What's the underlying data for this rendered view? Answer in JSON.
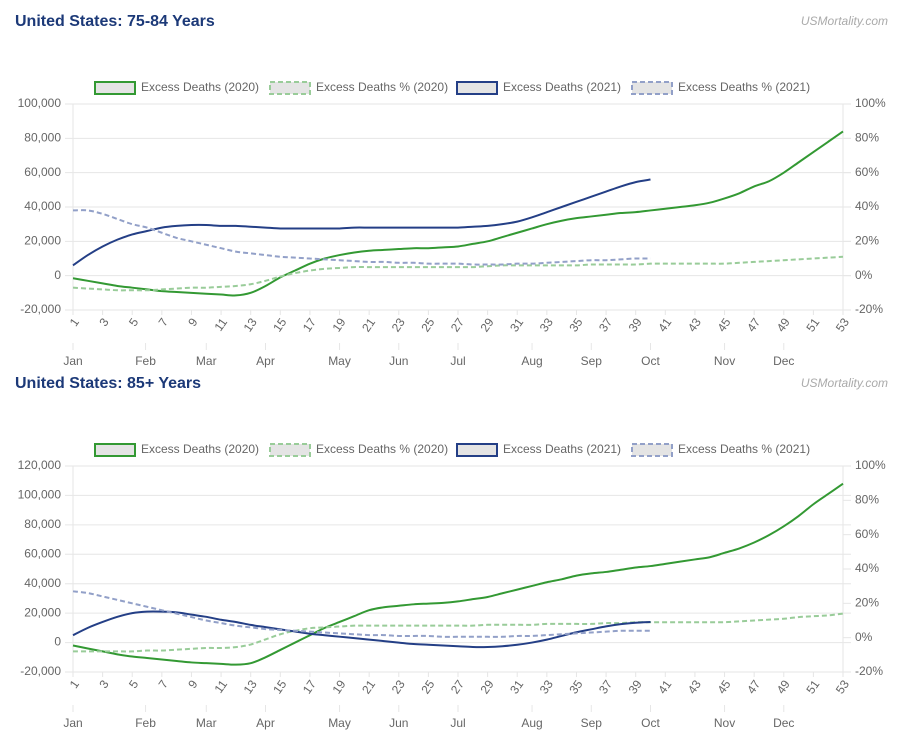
{
  "chart_data": [
    {
      "type": "line",
      "title": "United States: 75-84 Years",
      "source": "USMortality.com",
      "x": [
        1,
        2,
        3,
        4,
        5,
        6,
        7,
        8,
        9,
        10,
        11,
        12,
        13,
        14,
        15,
        16,
        17,
        18,
        19,
        20,
        21,
        22,
        23,
        24,
        25,
        26,
        27,
        28,
        29,
        30,
        31,
        32,
        33,
        34,
        35,
        36,
        37,
        38,
        39,
        40,
        41,
        42,
        43,
        44,
        45,
        46,
        47,
        48,
        49,
        50,
        51,
        52,
        53
      ],
      "xlim": [
        1,
        53
      ],
      "xticks": [
        1,
        3,
        5,
        7,
        9,
        11,
        13,
        15,
        17,
        19,
        21,
        23,
        25,
        27,
        29,
        31,
        33,
        35,
        37,
        39,
        41,
        43,
        45,
        47,
        49,
        51,
        53
      ],
      "x2ticks": [
        {
          "value": 1,
          "label": "Jan"
        },
        {
          "value": 5.9,
          "label": "Feb"
        },
        {
          "value": 10,
          "label": "Mar"
        },
        {
          "value": 14,
          "label": "Apr"
        },
        {
          "value": 19,
          "label": "May"
        },
        {
          "value": 23,
          "label": "Jun"
        },
        {
          "value": 27,
          "label": "Jul"
        },
        {
          "value": 32,
          "label": "Aug"
        },
        {
          "value": 36,
          "label": "Sep"
        },
        {
          "value": 40,
          "label": "Oct"
        },
        {
          "value": 45,
          "label": "Nov"
        },
        {
          "value": 49,
          "label": "Dec"
        }
      ],
      "ylim": [
        -20000,
        100000
      ],
      "yticks": [
        {
          "value": -20000,
          "label": "-20,000"
        },
        0,
        {
          "value": 20000,
          "label": "20,000"
        },
        {
          "value": 40000,
          "label": "40,000"
        },
        {
          "value": 60000,
          "label": "60,000"
        },
        {
          "value": 80000,
          "label": "80,000"
        },
        {
          "value": 100000,
          "label": "100,000"
        }
      ],
      "y2lim": [
        -20,
        100
      ],
      "y2ticks": [
        {
          "value": -20,
          "label": "-20%"
        },
        {
          "value": 0,
          "label": "0%"
        },
        {
          "value": 20,
          "label": "20%"
        },
        {
          "value": 40,
          "label": "40%"
        },
        {
          "value": 60,
          "label": "60%"
        },
        {
          "value": 80,
          "label": "80%"
        },
        {
          "value": 100,
          "label": "100%"
        }
      ],
      "grid": true,
      "legend": "top",
      "series": [
        {
          "name": "Excess Deaths (2020)",
          "color": "#339933",
          "values": [
            -1500,
            -3000,
            -4500,
            -6000,
            -7000,
            -8000,
            -9000,
            -9500,
            -10000,
            -10500,
            -11000,
            -11500,
            -10000,
            -6000,
            -1000,
            3000,
            7000,
            10000,
            12000,
            13500,
            14500,
            15000,
            15500,
            16000,
            16000,
            16500,
            17000,
            18500,
            20000,
            22500,
            25000,
            27500,
            30000,
            32000,
            33500,
            34500,
            35500,
            36500,
            37000,
            38000,
            39000,
            40000,
            41000,
            42500,
            45000,
            48000,
            52000,
            55000,
            60000,
            66000,
            72000,
            78000,
            84000
          ]
        },
        {
          "name": "Excess Deaths % (2020)",
          "color": "#99cc99",
          "dashed": true,
          "axis": "y2",
          "values": [
            -7,
            -7.5,
            -8,
            -8.5,
            -8.5,
            -8.5,
            -8,
            -7.5,
            -7,
            -7,
            -6.5,
            -6,
            -5,
            -3,
            -0.5,
            1.5,
            3,
            4,
            4.5,
            5,
            5,
            5,
            5,
            5,
            5,
            5,
            5,
            5,
            5.5,
            6,
            6,
            6,
            6,
            6,
            6,
            6.5,
            6.5,
            6.5,
            6.5,
            7,
            7,
            7,
            7,
            7,
            7,
            7.5,
            8,
            8.5,
            9,
            9.5,
            10,
            10.5,
            11
          ]
        },
        {
          "name": "Excess Deaths (2021)",
          "color": "#243f86",
          "values": [
            6000,
            12000,
            17000,
            21000,
            24000,
            26000,
            28000,
            29000,
            29500,
            29500,
            29000,
            29000,
            28500,
            28000,
            27500,
            27500,
            27500,
            27500,
            27500,
            28000,
            28000,
            28000,
            28000,
            28000,
            28000,
            28000,
            28000,
            28500,
            29000,
            30000,
            31500,
            34000,
            37000,
            40000,
            43000,
            46000,
            49000,
            52000,
            54500,
            56000,
            null,
            null,
            null,
            null,
            null,
            null,
            null,
            null,
            null,
            null,
            null,
            null,
            null
          ]
        },
        {
          "name": "Excess Deaths % (2021)",
          "color": "#92a0c8",
          "dashed": true,
          "axis": "y2",
          "values": [
            38,
            38,
            36,
            33,
            30,
            28,
            25,
            22,
            20,
            18,
            16,
            14,
            13,
            12,
            11,
            10.5,
            10,
            9.5,
            9,
            8.5,
            8,
            8,
            7.5,
            7.5,
            7,
            7,
            7,
            6.5,
            6.5,
            6.5,
            7,
            7,
            7.5,
            8,
            8.5,
            9,
            9,
            9.5,
            10,
            10,
            null,
            null,
            null,
            null,
            null,
            null,
            null,
            null,
            null,
            null,
            null,
            null,
            null
          ]
        }
      ]
    },
    {
      "type": "line",
      "title": "United States: 85+ Years",
      "source": "USMortality.com",
      "x": [
        1,
        2,
        3,
        4,
        5,
        6,
        7,
        8,
        9,
        10,
        11,
        12,
        13,
        14,
        15,
        16,
        17,
        18,
        19,
        20,
        21,
        22,
        23,
        24,
        25,
        26,
        27,
        28,
        29,
        30,
        31,
        32,
        33,
        34,
        35,
        36,
        37,
        38,
        39,
        40,
        41,
        42,
        43,
        44,
        45,
        46,
        47,
        48,
        49,
        50,
        51,
        52,
        53
      ],
      "xlim": [
        1,
        53
      ],
      "xticks": [
        1,
        3,
        5,
        7,
        9,
        11,
        13,
        15,
        17,
        19,
        21,
        23,
        25,
        27,
        29,
        31,
        33,
        35,
        37,
        39,
        41,
        43,
        45,
        47,
        49,
        51,
        53
      ],
      "x2ticks": [
        {
          "value": 1,
          "label": "Jan"
        },
        {
          "value": 5.9,
          "label": "Feb"
        },
        {
          "value": 10,
          "label": "Mar"
        },
        {
          "value": 14,
          "label": "Apr"
        },
        {
          "value": 19,
          "label": "May"
        },
        {
          "value": 23,
          "label": "Jun"
        },
        {
          "value": 27,
          "label": "Jul"
        },
        {
          "value": 32,
          "label": "Aug"
        },
        {
          "value": 36,
          "label": "Sep"
        },
        {
          "value": 40,
          "label": "Oct"
        },
        {
          "value": 45,
          "label": "Nov"
        },
        {
          "value": 49,
          "label": "Dec"
        }
      ],
      "ylim": [
        -20000,
        120000
      ],
      "yticks": [
        {
          "value": -20000,
          "label": "-20,000"
        },
        0,
        {
          "value": 20000,
          "label": "20,000"
        },
        {
          "value": 40000,
          "label": "40,000"
        },
        {
          "value": 60000,
          "label": "60,000"
        },
        {
          "value": 80000,
          "label": "80,000"
        },
        {
          "value": 100000,
          "label": "100,000"
        },
        {
          "value": 120000,
          "label": "120,000"
        }
      ],
      "y2lim": [
        -20,
        100
      ],
      "y2ticks": [
        {
          "value": -20,
          "label": "-20%"
        },
        {
          "value": 0,
          "label": "0%"
        },
        {
          "value": 20,
          "label": "20%"
        },
        {
          "value": 40,
          "label": "40%"
        },
        {
          "value": 60,
          "label": "60%"
        },
        {
          "value": 80,
          "label": "80%"
        },
        {
          "value": 100,
          "label": "100%"
        }
      ],
      "grid": true,
      "legend": "top",
      "series": [
        {
          "name": "Excess Deaths (2020)",
          "color": "#339933",
          "values": [
            -2000,
            -4000,
            -6000,
            -8000,
            -9500,
            -10500,
            -11500,
            -12500,
            -13500,
            -14000,
            -14500,
            -15000,
            -14000,
            -10000,
            -5000,
            0,
            5000,
            10000,
            14000,
            18000,
            22000,
            24000,
            25000,
            26000,
            26500,
            27000,
            28000,
            29500,
            31000,
            33500,
            36000,
            38500,
            41000,
            43000,
            45500,
            47000,
            48000,
            49500,
            51000,
            52000,
            53500,
            55000,
            56500,
            58000,
            61000,
            64000,
            68000,
            73000,
            79000,
            86000,
            94000,
            101000,
            108000
          ]
        },
        {
          "name": "Excess Deaths % (2020)",
          "color": "#99cc99",
          "dashed": true,
          "axis": "y2",
          "values": [
            -8,
            -8,
            -8,
            -8,
            -8,
            -7.5,
            -7.5,
            -7,
            -6.5,
            -6,
            -6,
            -5.5,
            -4,
            -1,
            2,
            4,
            5.5,
            6,
            6.5,
            7,
            7,
            7,
            7,
            7,
            7,
            7,
            7,
            7,
            7.5,
            7.5,
            7.5,
            7.5,
            8,
            8,
            8,
            8,
            8.5,
            8.5,
            9,
            9,
            9,
            9,
            9,
            9,
            9,
            9.5,
            10,
            10.5,
            11,
            12,
            12.5,
            13,
            14
          ]
        },
        {
          "name": "Excess Deaths (2021)",
          "color": "#243f86",
          "values": [
            5000,
            10000,
            14000,
            17500,
            20000,
            21000,
            21000,
            20500,
            19000,
            17500,
            15500,
            14000,
            12000,
            10500,
            9000,
            7500,
            6000,
            5000,
            4000,
            3000,
            2000,
            1000,
            0,
            -1000,
            -1500,
            -2000,
            -2500,
            -3000,
            -3000,
            -2500,
            -1500,
            0,
            2000,
            4500,
            7000,
            9000,
            11000,
            12500,
            13500,
            14000,
            null,
            null,
            null,
            null,
            null,
            null,
            null,
            null,
            null,
            null,
            null,
            null,
            null
          ]
        },
        {
          "name": "Excess Deaths % (2021)",
          "color": "#92a0c8",
          "dashed": true,
          "axis": "y2",
          "values": [
            27,
            26,
            24,
            22,
            20,
            18,
            16,
            14,
            12,
            10,
            8.5,
            7,
            6,
            5,
            4.5,
            4,
            3.5,
            3,
            2.5,
            2,
            1.5,
            1.5,
            1,
            1,
            1,
            0.5,
            0.5,
            0.5,
            0.5,
            0.5,
            1,
            1,
            1.5,
            2,
            2.5,
            3,
            3.5,
            4,
            4,
            4,
            null,
            null,
            null,
            null,
            null,
            null,
            null,
            null,
            null,
            null,
            null,
            null,
            null
          ]
        }
      ]
    }
  ]
}
